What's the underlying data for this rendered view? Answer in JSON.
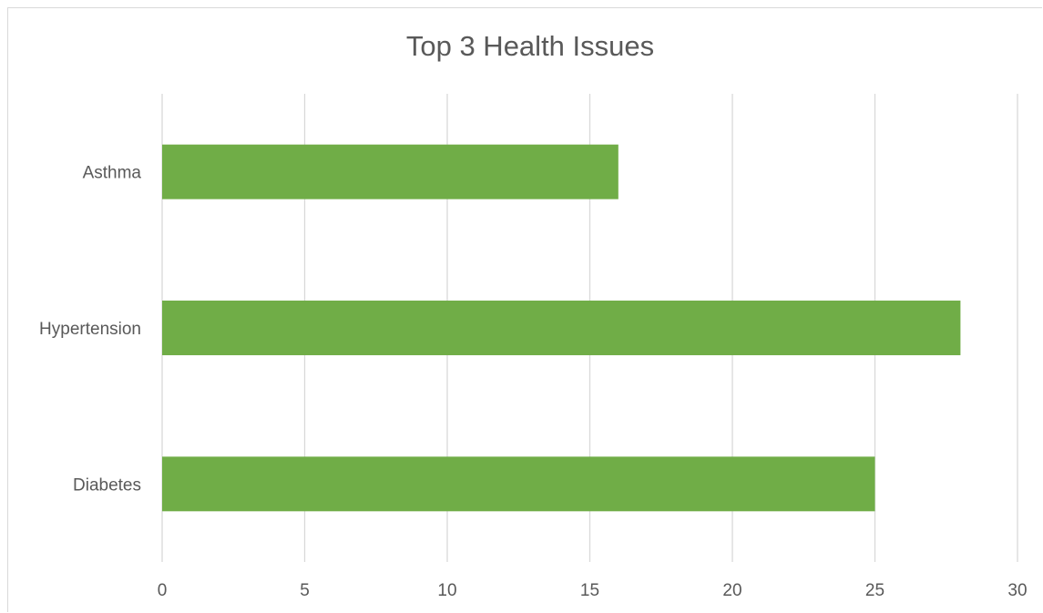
{
  "chart_data": {
    "type": "bar",
    "orientation": "horizontal",
    "title": "Top 3 Health Issues",
    "xlabel": "",
    "ylabel": "",
    "categories": [
      "Asthma",
      "Hypertension",
      "Diabetes"
    ],
    "values": [
      16,
      28,
      25
    ],
    "xlim": [
      0,
      30
    ],
    "xticks": [
      "0",
      "5",
      "10",
      "15",
      "20",
      "25",
      "30"
    ],
    "grid": true,
    "legend": "none",
    "bar_color": "#70ad47",
    "grid_color": "#d9d9d9"
  }
}
